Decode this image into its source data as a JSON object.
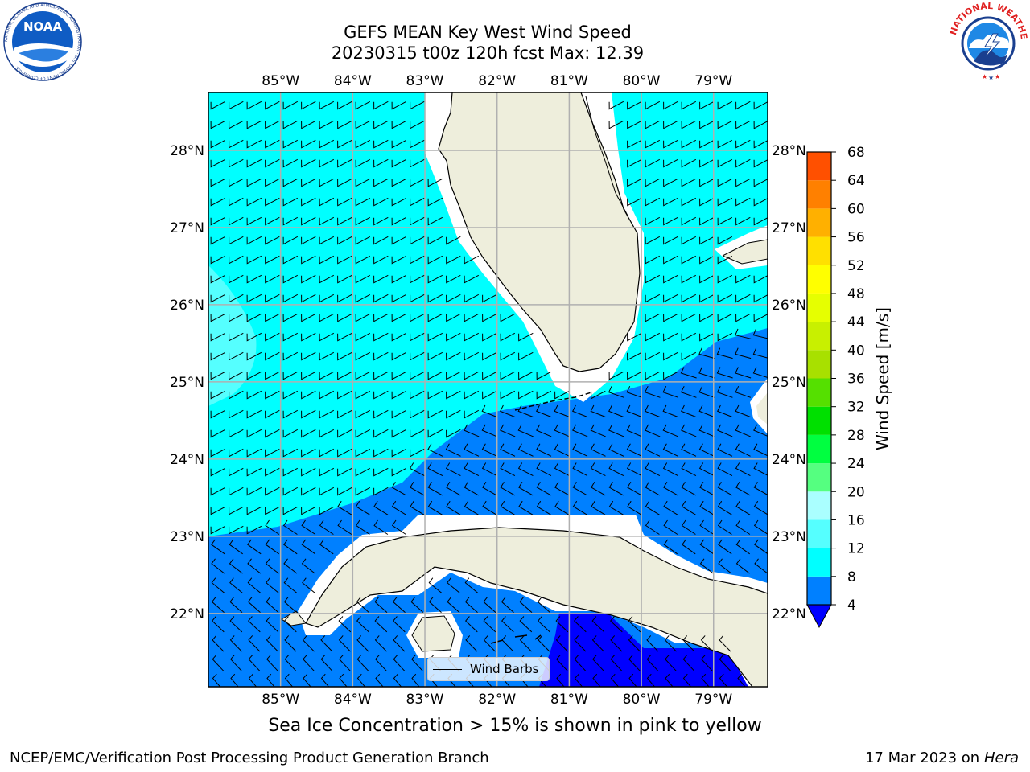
{
  "header": {
    "title_line1": "GEFS MEAN Key West Wind Speed",
    "title_line2": "20230315 t00z 120h fcst   Max: 12.39"
  },
  "logos": {
    "left": "noaa-logo",
    "right": "nws-logo",
    "noaa_text": "NOAA",
    "noaa_ring_text": "NATIONAL OCEANIC AND ATMOSPHERIC ADMINISTRATION · U.S. DEPARTMENT OF COMMERCE",
    "nws_ring_text": "NATIONAL WEATHER SERVICE"
  },
  "map": {
    "lon_ticks": [
      "85°W",
      "84°W",
      "83°W",
      "82°W",
      "81°W",
      "80°W",
      "79°W"
    ],
    "lat_ticks": [
      "28°N",
      "27°N",
      "26°N",
      "25°N",
      "24°N",
      "23°N",
      "22°N"
    ],
    "lon_range": [
      -86.0,
      -78.25
    ],
    "lat_range": [
      21.05,
      28.75
    ],
    "grid": true,
    "colors": {
      "land": "#eeeedc",
      "coast_mask": "#ffffff",
      "cyan": "#00ffff",
      "light_cyan": "#55ffff",
      "blue": "#0080ff",
      "deep_blue": "#0000ff",
      "grid": "#b0b0b0"
    },
    "legend_label": "Wind Barbs"
  },
  "colorbar": {
    "label": "Wind Speed [m/s]",
    "ticks": [
      "4",
      "8",
      "12",
      "16",
      "20",
      "24",
      "28",
      "32",
      "36",
      "40",
      "44",
      "48",
      "52",
      "56",
      "60",
      "64",
      "68"
    ],
    "colors": [
      "#0080ff",
      "#00ffff",
      "#55ffff",
      "#aaffff",
      "#55ff80",
      "#00ff40",
      "#00e000",
      "#55e000",
      "#a8e000",
      "#c8f000",
      "#e6ff00",
      "#ffff00",
      "#ffe000",
      "#ffb000",
      "#ff8000",
      "#ff5000",
      "#ff2000",
      "#ff0000"
    ],
    "under_color": "#0000ff"
  },
  "caption": "Sea Ice Concentration > 15% is shown in pink to yellow",
  "footer": {
    "left": "NCEP/EMC/Verification Post Processing Product Generation Branch",
    "right_date": "17 Mar 2023 on",
    "right_host": "Hera"
  }
}
